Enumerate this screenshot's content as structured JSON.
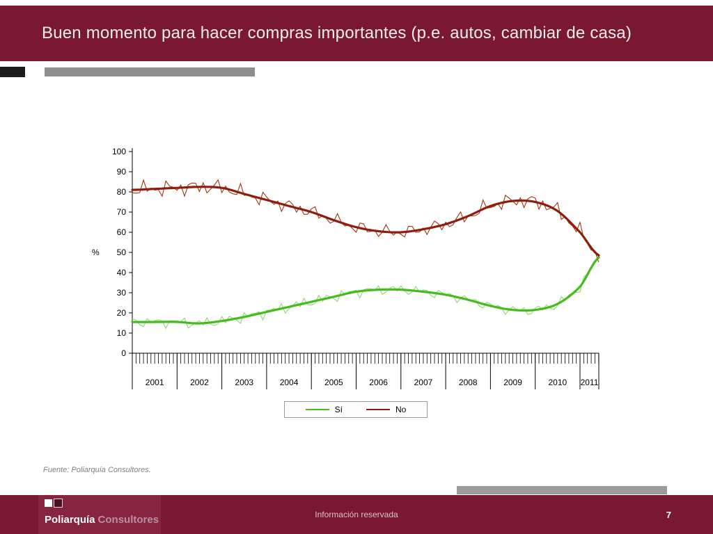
{
  "header": {
    "title": "Buen momento para hacer compras importantes (p.e. autos, cambiar de casa)"
  },
  "source_note": "Fuente: Poliarquía Consultores.",
  "footer": {
    "logo_primary": "Poliarquía",
    "logo_secondary": "Consultores",
    "center_text": "Información reservada",
    "page_number": "7"
  },
  "colors": {
    "maroon_band": "#7A1832",
    "gray_accent_bar": "#8F8F8F",
    "si_line": "#45BC1E",
    "si_noisy_line": "#8FD96C",
    "no_line": "#8E1D0E",
    "no_noisy_line": "#A8330F"
  },
  "chart_data": {
    "type": "line",
    "title": "",
    "xlabel": "",
    "ylabel": "%",
    "ylim": [
      0,
      100
    ],
    "ytick_step": 10,
    "x_range": [
      2001,
      2011.42
    ],
    "x_tick_interval_months": 1,
    "grid": false,
    "legend_position": "bottom",
    "years": [
      2001,
      2002,
      2003,
      2004,
      2005,
      2006,
      2007,
      2008,
      2009,
      2010,
      2011
    ],
    "knots_x": [
      2001,
      2001.5,
      2002,
      2002.5,
      2003,
      2003.5,
      2004,
      2004.5,
      2005,
      2005.5,
      2006,
      2006.5,
      2007,
      2007.5,
      2008,
      2008.5,
      2009,
      2009.5,
      2010,
      2010.5,
      2011,
      2011.42
    ],
    "series": [
      {
        "name": "Sí",
        "color": "#45BC1E",
        "noise_color": "#8FD96C",
        "noise_amplitude": 2.6,
        "trend": [
          15.5,
          15.5,
          15.5,
          14.8,
          16.0,
          18.0,
          20.5,
          23.0,
          25.5,
          28.0,
          30.5,
          31.5,
          31.5,
          30.5,
          29.0,
          26.5,
          23.5,
          21.5,
          21.5,
          24.5,
          33.0,
          47.5
        ]
      },
      {
        "name": "No",
        "color": "#8E1D0E",
        "noise_color": "#A8330F",
        "noise_amplitude": 3.6,
        "trend": [
          81.0,
          81.5,
          82.0,
          82.5,
          82.0,
          79.0,
          76.0,
          73.0,
          70.0,
          66.0,
          62.5,
          60.5,
          60.0,
          61.5,
          64.0,
          68.0,
          73.0,
          75.5,
          75.0,
          70.5,
          60.0,
          48.5
        ]
      }
    ]
  }
}
